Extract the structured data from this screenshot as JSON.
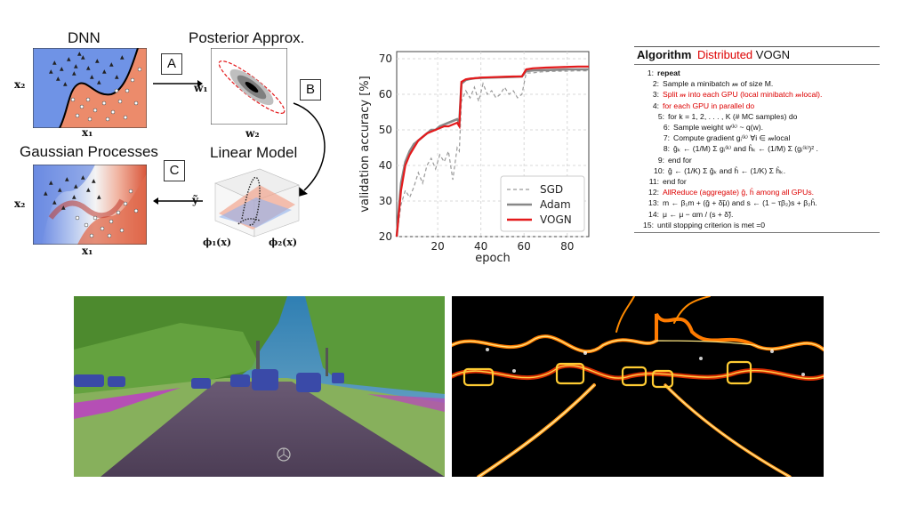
{
  "panels": {
    "dnn": {
      "title": "DNN",
      "ylabel": "x₂",
      "xlabel": "x₁"
    },
    "posterior": {
      "title": "Posterior Approx.",
      "ylabel": "w₁",
      "xlabel": "w₂"
    },
    "gp": {
      "title": "Gaussian Processes",
      "ylabel": "x₂",
      "xlabel": "x₁"
    },
    "linear": {
      "title": "Linear Model",
      "ylabel": "ỹ",
      "xlabel1": "ϕ₁(x)",
      "xlabel2": "ϕ₂(x)"
    },
    "step_labels": {
      "a": "A",
      "b": "B",
      "c": "C"
    }
  },
  "colors": {
    "blue_region": "#6f93e6",
    "orange_region": "#ec8b6b",
    "vogn": "#e41a1c",
    "adam": "#888888",
    "sgd": "#999999",
    "algo_red": "#dd0000"
  },
  "chart_data": {
    "type": "line",
    "xlabel": "epoch",
    "ylabel": "validation accuracy [%]",
    "xlim": [
      1,
      90
    ],
    "ylim": [
      20,
      72
    ],
    "xticks": [
      20,
      40,
      60,
      80
    ],
    "yticks": [
      20,
      30,
      40,
      50,
      60,
      70
    ],
    "grid": true,
    "legend_position": "bottom-right",
    "series": [
      {
        "name": "SGD",
        "color": "#999999",
        "dash": true,
        "x": [
          1,
          3,
          5,
          7,
          9,
          11,
          13,
          15,
          17,
          19,
          21,
          23,
          25,
          27,
          29,
          30,
          31,
          33,
          35,
          37,
          39,
          41,
          43,
          45,
          47,
          49,
          51,
          53,
          55,
          57,
          59,
          61,
          64,
          68,
          72,
          76,
          80,
          84,
          88,
          90
        ],
        "y": [
          20,
          29,
          33,
          31,
          34,
          38,
          35,
          40,
          42,
          39,
          43,
          41,
          44,
          36,
          45,
          44,
          58,
          61,
          59,
          62,
          58,
          63,
          60,
          61,
          59,
          60,
          62,
          60,
          61,
          59,
          60,
          66,
          66,
          66.3,
          66.4,
          66.5,
          66.5,
          66.6,
          66.6,
          66.6
        ]
      },
      {
        "name": "Adam",
        "color": "#888888",
        "dash": false,
        "x": [
          1,
          3,
          5,
          7,
          9,
          11,
          13,
          15,
          17,
          19,
          21,
          23,
          25,
          27,
          29,
          30,
          31,
          33,
          35,
          37,
          40,
          45,
          50,
          55,
          59,
          61,
          64,
          70,
          75,
          80,
          85,
          90
        ],
        "y": [
          20,
          35,
          41,
          44,
          46,
          47,
          48,
          49,
          50,
          50,
          51,
          51.5,
          52,
          52.5,
          53,
          52,
          63,
          64,
          64.3,
          64.5,
          64.6,
          64.7,
          64.8,
          64.9,
          65,
          66.5,
          66.7,
          66.8,
          66.9,
          67,
          67,
          67
        ]
      },
      {
        "name": "VOGN",
        "color": "#e41a1c",
        "dash": false,
        "x": [
          1,
          3,
          5,
          7,
          9,
          11,
          13,
          15,
          17,
          19,
          21,
          23,
          25,
          27,
          29,
          30,
          31,
          33,
          35,
          37,
          40,
          45,
          50,
          55,
          59,
          61,
          64,
          70,
          75,
          80,
          85,
          90
        ],
        "y": [
          20,
          33,
          40,
          43,
          45,
          47,
          48,
          49,
          49.5,
          50,
          50.5,
          51,
          51,
          51.5,
          52,
          51,
          63.5,
          64.2,
          64.4,
          64.5,
          64.7,
          64.8,
          64.9,
          65,
          65,
          67,
          67.3,
          67.5,
          67.6,
          67.7,
          67.8,
          67.8
        ]
      }
    ]
  },
  "algorithm": {
    "title_word": "Algorithm",
    "title_red": "Distributed",
    "title_rest": "VOGN",
    "lines": [
      {
        "n": "1:",
        "t": "repeat",
        "red": false,
        "bold": true,
        "indent": 0
      },
      {
        "n": "2:",
        "t": "Sample a minibatch 𝓂 of size M.",
        "red": false,
        "bold": false,
        "indent": 1
      },
      {
        "n": "3:",
        "t": "Split 𝓂 into each GPU (local minibatch 𝓂local).",
        "red": true,
        "bold": false,
        "indent": 1
      },
      {
        "n": "4:",
        "t": "for  each GPU in parallel do",
        "red": true,
        "bold": false,
        "indent": 1
      },
      {
        "n": "5:",
        "t": "for k = 1, 2, . . . , K (# MC samples) do",
        "red": false,
        "bold": false,
        "indent": 2
      },
      {
        "n": "6:",
        "t": "Sample weight w⁽ᵏ⁾ ~ q(w).",
        "red": false,
        "bold": false,
        "indent": 3
      },
      {
        "n": "7:",
        "t": "Compute gradient gᵢ⁽ᵏ⁾ ∀i ∈ 𝓂local",
        "red": false,
        "bold": false,
        "indent": 3
      },
      {
        "n": "8:",
        "t": "ĝₖ ← (1/M) Σ gᵢ⁽ᵏ⁾ and ĥₖ ← (1/M) Σ (gᵢ⁽ᵏ⁾)² .",
        "red": false,
        "bold": false,
        "indent": 3
      },
      {
        "n": "9:",
        "t": "end for",
        "red": false,
        "bold": false,
        "indent": 2
      },
      {
        "n": "10:",
        "t": "ĝ ← (1/K) Σ ĝₖ and ĥ ← (1/K) Σ ĥₖ.",
        "red": false,
        "bold": false,
        "indent": 2
      },
      {
        "n": "11:",
        "t": "end for",
        "red": false,
        "bold": false,
        "indent": 1
      },
      {
        "n": "12:",
        "t": "AllReduce (aggregate) ĝ, ĥ among all GPUs.",
        "red": true,
        "bold": false,
        "indent": 1
      },
      {
        "n": "13:",
        "t": "m ← β₁m + (ĝ + δ̃μ) and s ← (1 − τβ₂)s + β₂ĥ.",
        "red": false,
        "bold": false,
        "indent": 1
      },
      {
        "n": "14:",
        "t": "μ ← μ − αm / (s + δ̃).",
        "red": false,
        "bold": false,
        "indent": 1
      },
      {
        "n": "15:",
        "t": "until stopping criterion is met =0",
        "red": false,
        "bold": false,
        "indent": 0
      }
    ]
  },
  "photos": {
    "left": "semantic-segmentation-overlay",
    "right": "uncertainty-heatmap"
  }
}
